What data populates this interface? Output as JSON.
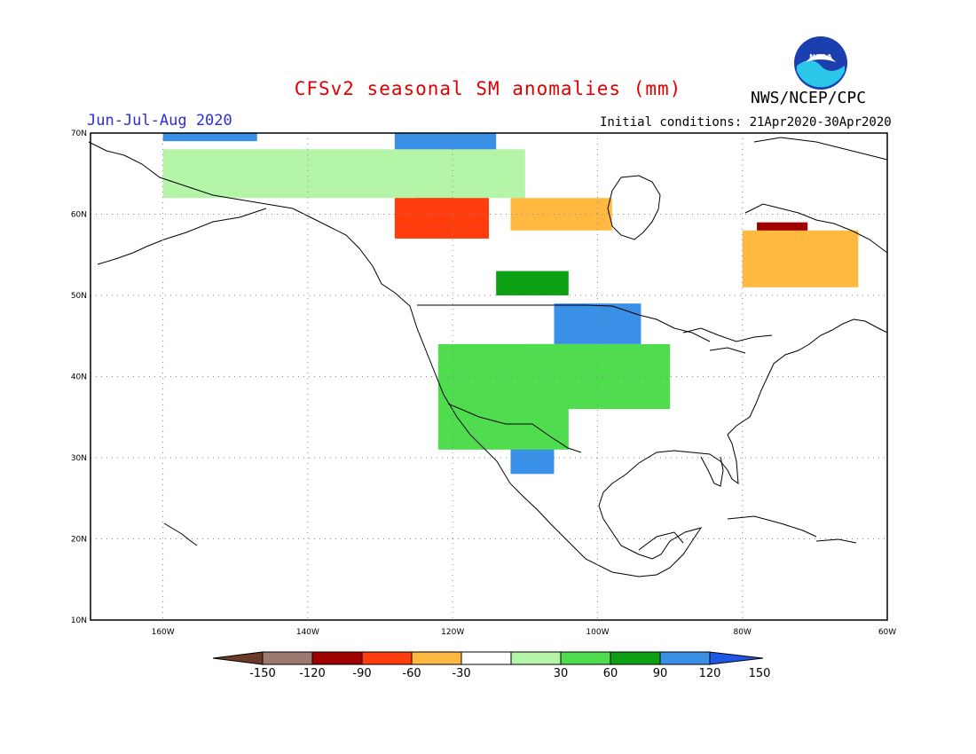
{
  "header": {
    "title": "CFSv2 seasonal SM anomalies (mm)",
    "period": "Jun-Jul-Aug 2020",
    "agency": "NWS/NCEP/CPC",
    "initial_conditions": "Initial conditions: 21Apr2020-30Apr2020",
    "logo_text": "NOAA"
  },
  "colors": {
    "title": "#e00000",
    "period": "#2d2dd9",
    "grid": "#888888",
    "coast": "#000000"
  },
  "axes": {
    "lat_ticks": [
      "70N",
      "60N",
      "50N",
      "40N",
      "30N",
      "20N",
      "10N"
    ],
    "lon_ticks": [
      "160W",
      "140W",
      "120W",
      "100W",
      "80W",
      "60W"
    ],
    "lat_range": [
      10,
      70
    ],
    "lon_range": [
      -170,
      -60
    ]
  },
  "colorbar": {
    "labels": [
      "-150",
      "-120",
      "-90",
      "-60",
      "-30",
      "30",
      "60",
      "90",
      "120",
      "150"
    ],
    "bins": [
      {
        "color": "#6b3a28",
        "range": "< -150"
      },
      {
        "color": "#9c7b6e",
        "range": "-150 to -120"
      },
      {
        "color": "#a00000",
        "range": "-120 to -90"
      },
      {
        "color": "#ff3d0d",
        "range": "-90 to -60"
      },
      {
        "color": "#ffb840",
        "range": "-60 to -30"
      },
      {
        "color": "#ffffff",
        "range": "-30 to 30"
      },
      {
        "color": "#b4f5a8",
        "range": "30 to 60"
      },
      {
        "color": "#4fdc4f",
        "range": "60 to 90"
      },
      {
        "color": "#0ea014",
        "range": "90 to 120"
      },
      {
        "color": "#3a8fe6",
        "range": "120 to 150"
      },
      {
        "color": "#1e56e6",
        "range": "> 150"
      }
    ]
  },
  "anomaly_regions": [
    {
      "category": "positive-strong",
      "color": "#3a8fe6",
      "lon": [
        -106,
        -94
      ],
      "lat": [
        44,
        49
      ]
    },
    {
      "category": "positive-strong",
      "color": "#3a8fe6",
      "lon": [
        -112,
        -106
      ],
      "lat": [
        28,
        33
      ]
    },
    {
      "category": "positive-strong",
      "color": "#3a8fe6",
      "lon": [
        -128,
        -114
      ],
      "lat": [
        66,
        70
      ]
    },
    {
      "category": "positive-strong",
      "color": "#3a8fe6",
      "lon": [
        -160,
        -147
      ],
      "lat": [
        69,
        70
      ]
    },
    {
      "category": "positive",
      "color": "#4fdc4f",
      "lon": [
        -110,
        -90
      ],
      "lat": [
        36,
        44
      ]
    },
    {
      "category": "positive",
      "color": "#4fdc4f",
      "lon": [
        -122,
        -104
      ],
      "lat": [
        31,
        44
      ]
    },
    {
      "category": "positive",
      "color": "#0ea014",
      "lon": [
        -114,
        -104
      ],
      "lat": [
        50,
        53
      ]
    },
    {
      "category": "positive",
      "color": "#b4f5a8",
      "lon": [
        -160,
        -110
      ],
      "lat": [
        62,
        68
      ]
    },
    {
      "category": "negative",
      "color": "#ff3d0d",
      "lon": [
        -128,
        -115
      ],
      "lat": [
        57,
        62
      ]
    },
    {
      "category": "negative",
      "color": "#ffb840",
      "lon": [
        -112,
        -98
      ],
      "lat": [
        58,
        62
      ]
    },
    {
      "category": "negative",
      "color": "#a00000",
      "lon": [
        -78,
        -71
      ],
      "lat": [
        53,
        59
      ]
    },
    {
      "category": "negative",
      "color": "#ffb840",
      "lon": [
        -80,
        -64
      ],
      "lat": [
        51,
        58
      ]
    },
    {
      "category": "negative",
      "color": "#ff3d0d",
      "lon": [
        -125,
        -120
      ],
      "lat": [
        58,
        62
      ]
    }
  ]
}
